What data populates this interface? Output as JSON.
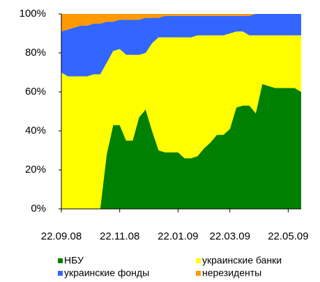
{
  "chart_data": {
    "type": "stacked_area",
    "categories": [
      "22.09.08",
      null,
      null,
      null,
      null,
      null,
      null,
      null,
      null,
      "22.11.08",
      null,
      null,
      null,
      null,
      null,
      null,
      null,
      null,
      "22.01.09",
      null,
      null,
      null,
      null,
      null,
      null,
      null,
      "22.03.09",
      null,
      null,
      null,
      null,
      null,
      null,
      null,
      null,
      "22.05.09",
      null,
      null
    ],
    "series": [
      {
        "name": "НБУ",
        "color": "#008000",
        "values": [
          0,
          0,
          0,
          0,
          0,
          0,
          0,
          28,
          43,
          43,
          35,
          35,
          47,
          51,
          40,
          30,
          29,
          29,
          29,
          26,
          26,
          27,
          31,
          34,
          38,
          38,
          41,
          52,
          53,
          53,
          49,
          64,
          63,
          62,
          62,
          62,
          62,
          60
        ]
      },
      {
        "name": "украинские банки",
        "color": "#ffff00",
        "values": [
          70,
          68,
          68,
          68,
          68,
          69,
          69,
          47,
          38,
          39,
          44,
          44,
          32,
          29,
          45,
          58,
          59,
          59,
          59,
          62,
          62,
          62,
          58,
          55,
          51,
          51,
          49,
          39,
          38,
          36,
          40,
          25,
          26,
          27,
          27,
          27,
          27,
          29
        ]
      },
      {
        "name": "украинские фонды",
        "color": "#3366ff",
        "values": [
          21,
          24,
          25,
          26,
          26,
          26,
          26,
          21,
          15,
          15,
          18,
          18,
          18,
          18,
          13,
          10,
          11,
          11,
          11,
          11,
          11,
          10,
          10,
          10,
          10,
          10,
          9,
          8,
          8,
          10,
          11,
          11,
          11,
          11,
          11,
          11,
          11,
          11
        ]
      },
      {
        "name": "нерезиденты",
        "color": "#ff9900",
        "values": [
          9,
          8,
          7,
          6,
          6,
          5,
          5,
          4,
          4,
          3,
          3,
          3,
          3,
          2,
          2,
          2,
          1,
          1,
          1,
          1,
          1,
          1,
          1,
          1,
          1,
          1,
          1,
          1,
          1,
          1,
          0,
          0,
          0,
          0,
          0,
          0,
          0,
          0
        ]
      }
    ],
    "ylim": [
      0,
      100
    ],
    "yticks": [
      {
        "value": 0,
        "label": "0%"
      },
      {
        "value": 20,
        "label": "20%"
      },
      {
        "value": 40,
        "label": "40%"
      },
      {
        "value": 60,
        "label": "60%"
      },
      {
        "value": 80,
        "label": "80%"
      },
      {
        "value": 100,
        "label": "100%"
      }
    ]
  }
}
